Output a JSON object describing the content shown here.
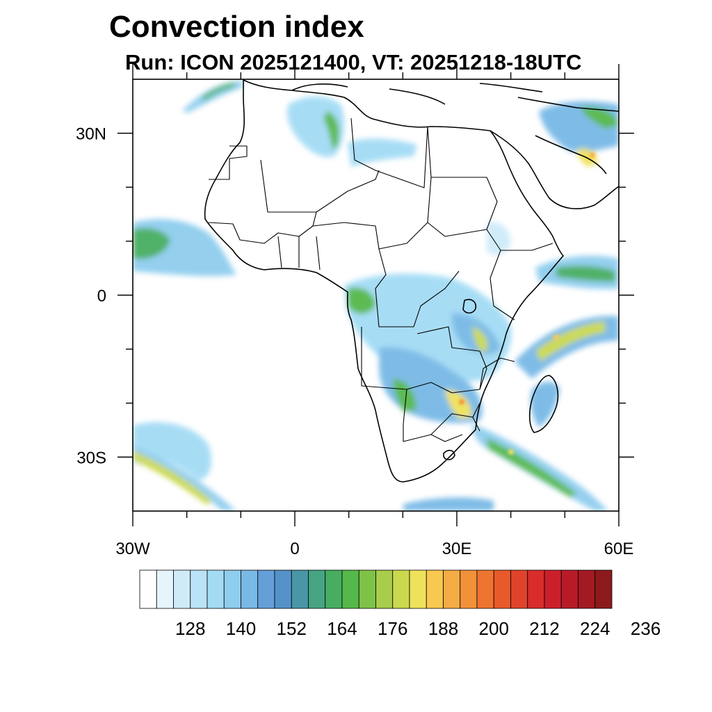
{
  "title": "Convection index",
  "subtitle": "Run: ICON 2025121400,  VT: 20251218-18UTC",
  "map": {
    "region": "Africa",
    "lon_range": [
      -30,
      60
    ],
    "lat_range": [
      -40,
      40
    ],
    "lon_ticks": [
      {
        "value": -30,
        "label": "30W"
      },
      {
        "value": 0,
        "label": "0"
      },
      {
        "value": 30,
        "label": "30E"
      },
      {
        "value": 60,
        "label": "60E"
      }
    ],
    "lat_ticks": [
      {
        "value": 30,
        "label": "30N"
      },
      {
        "value": 0,
        "label": "0"
      },
      {
        "value": -30,
        "label": "30S"
      }
    ],
    "minor_lon": [
      -20,
      -10,
      10,
      20,
      40,
      50
    ],
    "minor_lat": [
      20,
      10,
      -10,
      -20
    ]
  },
  "colorbar": {
    "colors": [
      "#ffffff",
      "#e6f4fc",
      "#cfebf9",
      "#bae3f7",
      "#a3dbf5",
      "#8fcdee",
      "#78b9e6",
      "#649fd8",
      "#5592c9",
      "#4a96a6",
      "#46a483",
      "#47ad61",
      "#55b84a",
      "#7fc248",
      "#a7cd4a",
      "#cad84e",
      "#eee25a",
      "#f9c850",
      "#f4ac45",
      "#f39139",
      "#ef7430",
      "#e85a2b",
      "#e04329",
      "#d82d2b",
      "#cc1f2c",
      "#b81a28",
      "#a31a22",
      "#8c1a1c"
    ],
    "tick_labels": [
      "128",
      "140",
      "152",
      "164",
      "176",
      "188",
      "200",
      "212",
      "224",
      "236"
    ]
  }
}
